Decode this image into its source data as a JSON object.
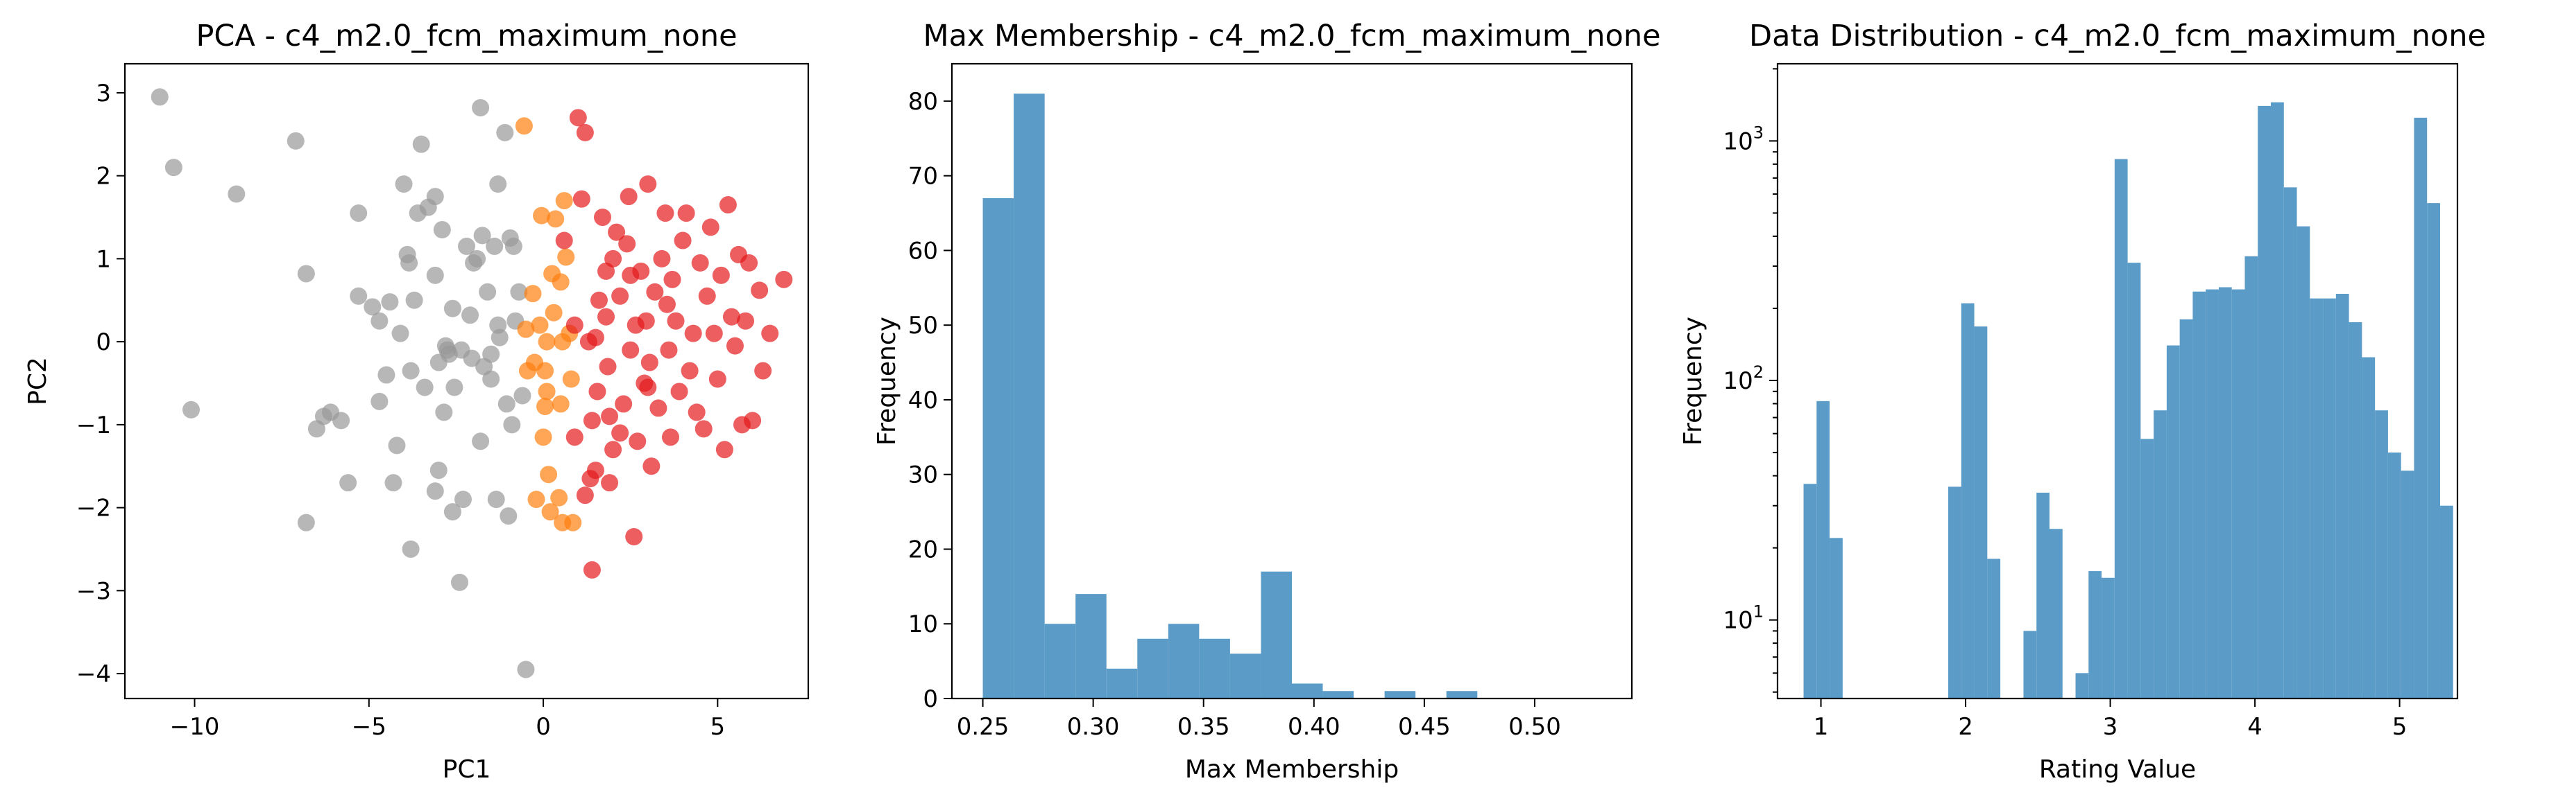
{
  "chart_data": [
    {
      "type": "scatter",
      "title": "PCA - c4_m2.0_fcm_maximum_none",
      "xlabel": "PC1",
      "ylabel": "PC2",
      "xlim": [
        -12,
        7.6
      ],
      "ylim": [
        -4.3,
        3.35
      ],
      "xticks": [
        -10,
        -5,
        0,
        5
      ],
      "yticks": [
        -4,
        -3,
        -2,
        -1,
        0,
        1,
        2,
        3
      ],
      "series": [
        {
          "color": "#999999",
          "points": [
            [
              -11,
              2.95
            ],
            [
              -10.6,
              2.1
            ],
            [
              -10.1,
              -0.82
            ],
            [
              -8.8,
              1.78
            ],
            [
              -7.1,
              2.42
            ],
            [
              -6.8,
              0.82
            ],
            [
              -6.8,
              -2.18
            ],
            [
              -6.5,
              -1.05
            ],
            [
              -6.3,
              -0.9
            ],
            [
              -6.1,
              -0.85
            ],
            [
              -5.8,
              -0.95
            ],
            [
              -5.6,
              -1.7
            ],
            [
              -5.3,
              1.55
            ],
            [
              -5.3,
              0.55
            ],
            [
              -4.9,
              0.42
            ],
            [
              -4.7,
              0.25
            ],
            [
              -4.7,
              -0.72
            ],
            [
              -4.5,
              -0.4
            ],
            [
              -4.4,
              0.48
            ],
            [
              -4.3,
              -1.7
            ],
            [
              -4.2,
              -1.25
            ],
            [
              -4.1,
              0.1
            ],
            [
              -4,
              1.9
            ],
            [
              -3.9,
              1.05
            ],
            [
              -3.85,
              0.95
            ],
            [
              -3.8,
              -0.35
            ],
            [
              -3.8,
              -2.5
            ],
            [
              -3.7,
              0.5
            ],
            [
              -3.6,
              1.55
            ],
            [
              -3.5,
              2.38
            ],
            [
              -3.4,
              -0.55
            ],
            [
              -3.3,
              1.62
            ],
            [
              -3.1,
              1.75
            ],
            [
              -3.1,
              0.8
            ],
            [
              -3.1,
              -1.8
            ],
            [
              -3,
              -0.25
            ],
            [
              -3,
              -1.55
            ],
            [
              -2.9,
              1.35
            ],
            [
              -2.85,
              -0.85
            ],
            [
              -2.8,
              -0.05
            ],
            [
              -2.75,
              -0.1
            ],
            [
              -2.7,
              -0.15
            ],
            [
              -2.6,
              0.4
            ],
            [
              -2.6,
              -2.05
            ],
            [
              -2.55,
              -0.55
            ],
            [
              -2.4,
              -2.9
            ],
            [
              -2.35,
              -0.1
            ],
            [
              -2.3,
              -1.9
            ],
            [
              -2.2,
              1.15
            ],
            [
              -2.1,
              0.32
            ],
            [
              -2.05,
              -0.2
            ],
            [
              -2,
              0.95
            ],
            [
              -1.9,
              1.0
            ],
            [
              -1.8,
              2.82
            ],
            [
              -1.8,
              -1.2
            ],
            [
              -1.75,
              1.28
            ],
            [
              -1.7,
              -0.3
            ],
            [
              -1.6,
              0.6
            ],
            [
              -1.5,
              -0.15
            ],
            [
              -1.5,
              -0.45
            ],
            [
              -1.4,
              1.15
            ],
            [
              -1.35,
              -1.9
            ],
            [
              -1.3,
              1.9
            ],
            [
              -1.3,
              0.2
            ],
            [
              -1.25,
              0.05
            ],
            [
              -1.1,
              2.52
            ],
            [
              -1.05,
              -0.75
            ],
            [
              -1,
              -2.1
            ],
            [
              -0.95,
              1.25
            ],
            [
              -0.9,
              -1.0
            ],
            [
              -0.85,
              1.15
            ],
            [
              -0.8,
              0.25
            ],
            [
              -0.7,
              0.6
            ],
            [
              -0.6,
              -0.65
            ],
            [
              -0.5,
              -3.95
            ]
          ]
        },
        {
          "color": "#ff7f0e",
          "points": [
            [
              -0.55,
              2.6
            ],
            [
              -0.5,
              0.15
            ],
            [
              -0.45,
              -0.35
            ],
            [
              -0.3,
              0.58
            ],
            [
              -0.25,
              -0.25
            ],
            [
              -0.2,
              -1.9
            ],
            [
              -0.1,
              0.2
            ],
            [
              -0.05,
              1.52
            ],
            [
              0,
              -1.15
            ],
            [
              0.05,
              -0.78
            ],
            [
              0.05,
              -0.35
            ],
            [
              0.1,
              -0.6
            ],
            [
              0.1,
              0.0
            ],
            [
              0.15,
              -1.6
            ],
            [
              0.2,
              -2.05
            ],
            [
              0.25,
              0.82
            ],
            [
              0.3,
              0.35
            ],
            [
              0.35,
              1.48
            ],
            [
              0.45,
              -1.88
            ],
            [
              0.5,
              -0.75
            ],
            [
              0.5,
              0.72
            ],
            [
              0.55,
              -2.18
            ],
            [
              0.55,
              0.0
            ],
            [
              0.6,
              1.7
            ],
            [
              0.65,
              1.02
            ],
            [
              0.75,
              0.1
            ],
            [
              0.8,
              -0.45
            ],
            [
              0.85,
              -2.18
            ]
          ]
        },
        {
          "color": "#e41a1c",
          "points": [
            [
              1.0,
              2.7
            ],
            [
              1.2,
              2.52
            ],
            [
              0.6,
              1.22
            ],
            [
              0.9,
              0.2
            ],
            [
              1.1,
              1.72
            ],
            [
              1.3,
              0.0
            ],
            [
              1.35,
              -1.65
            ],
            [
              1.4,
              -2.75
            ],
            [
              1.5,
              0.05
            ],
            [
              1.55,
              -0.6
            ],
            [
              1.6,
              0.5
            ],
            [
              1.7,
              1.5
            ],
            [
              1.8,
              0.3
            ],
            [
              1.85,
              -0.3
            ],
            [
              1.9,
              -1.7
            ],
            [
              2.0,
              1.0
            ],
            [
              2.0,
              -1.3
            ],
            [
              2.1,
              1.32
            ],
            [
              2.2,
              0.55
            ],
            [
              2.3,
              -0.75
            ],
            [
              2.4,
              1.18
            ],
            [
              2.45,
              1.75
            ],
            [
              2.5,
              -0.1
            ],
            [
              2.6,
              -2.35
            ],
            [
              2.65,
              0.2
            ],
            [
              2.7,
              -1.2
            ],
            [
              2.8,
              0.85
            ],
            [
              2.9,
              -0.5
            ],
            [
              2.95,
              0.25
            ],
            [
              3.0,
              1.9
            ],
            [
              3.05,
              -0.25
            ],
            [
              3.1,
              -1.5
            ],
            [
              3.2,
              0.6
            ],
            [
              3.3,
              -0.8
            ],
            [
              3.4,
              1.0
            ],
            [
              3.5,
              1.55
            ],
            [
              3.55,
              0.45
            ],
            [
              3.6,
              -0.1
            ],
            [
              3.65,
              -1.15
            ],
            [
              3.7,
              0.75
            ],
            [
              3.8,
              0.25
            ],
            [
              3.9,
              -0.6
            ],
            [
              4.0,
              1.22
            ],
            [
              4.1,
              1.55
            ],
            [
              4.2,
              -0.35
            ],
            [
              4.3,
              0.1
            ],
            [
              4.4,
              -0.85
            ],
            [
              4.5,
              0.95
            ],
            [
              4.6,
              -1.05
            ],
            [
              4.7,
              0.55
            ],
            [
              4.8,
              1.38
            ],
            [
              4.9,
              0.1
            ],
            [
              5.0,
              -0.45
            ],
            [
              5.1,
              0.8
            ],
            [
              5.2,
              -1.3
            ],
            [
              5.3,
              1.65
            ],
            [
              5.4,
              0.3
            ],
            [
              5.5,
              -0.05
            ],
            [
              5.6,
              1.05
            ],
            [
              5.7,
              -1.0
            ],
            [
              5.8,
              0.25
            ],
            [
              5.9,
              0.95
            ],
            [
              6.0,
              -0.95
            ],
            [
              6.2,
              0.62
            ],
            [
              6.3,
              -0.35
            ],
            [
              6.5,
              0.1
            ],
            [
              6.9,
              0.75
            ],
            [
              1.2,
              -1.85
            ],
            [
              1.5,
              -1.55
            ],
            [
              1.9,
              -0.9
            ],
            [
              2.2,
              -1.1
            ],
            [
              2.5,
              0.8
            ],
            [
              3.0,
              -0.55
            ],
            [
              0.9,
              -1.15
            ],
            [
              1.4,
              -0.95
            ],
            [
              1.8,
              0.85
            ]
          ]
        }
      ]
    },
    {
      "type": "bar",
      "title": "Max Membership - c4_m2.0_fcm_maximum_none",
      "xlabel": "Max Membership",
      "ylabel": "Frequency",
      "xlim": [
        0.236,
        0.544
      ],
      "ylim": [
        0,
        85
      ],
      "xticks": [
        0.25,
        0.3,
        0.35,
        0.4,
        0.45,
        0.5
      ],
      "xtick_labels": [
        "0.25",
        "0.30",
        "0.35",
        "0.40",
        "0.45",
        "0.50"
      ],
      "yticks": [
        0,
        10,
        20,
        30,
        40,
        50,
        60,
        70,
        80
      ],
      "color": "#5b9bc8",
      "bin_start": 0.25,
      "bin_width": 0.014,
      "values": [
        67,
        81,
        10,
        14,
        4,
        8,
        10,
        8,
        6,
        17,
        2,
        1,
        0,
        1,
        0,
        1,
        0,
        0,
        0,
        0
      ]
    },
    {
      "type": "bar",
      "title": "Data Distribution - c4_m2.0_fcm_maximum_none",
      "xlabel": "Rating Value",
      "ylabel": "Frequency",
      "yscale": "log",
      "xlim": [
        0.7,
        5.4
      ],
      "ylim": [
        4.7,
        2100
      ],
      "xticks": [
        1,
        2,
        3,
        4,
        5
      ],
      "yticks": [
        10,
        100,
        1000
      ],
      "ytick_labels": [
        [
          "10",
          "1"
        ],
        [
          "10",
          "2"
        ],
        [
          "10",
          "3"
        ]
      ],
      "color": "#5b9bc8",
      "bars": [
        [
          0.88,
          0.97,
          37
        ],
        [
          0.97,
          1.06,
          82
        ],
        [
          1.06,
          1.15,
          22
        ],
        [
          1.88,
          1.97,
          36
        ],
        [
          1.97,
          2.06,
          210
        ],
        [
          2.06,
          2.15,
          168
        ],
        [
          2.15,
          2.24,
          18
        ],
        [
          2.4,
          2.49,
          9
        ],
        [
          2.49,
          2.58,
          34
        ],
        [
          2.58,
          2.67,
          24
        ],
        [
          2.76,
          2.85,
          6
        ],
        [
          2.85,
          2.94,
          16
        ],
        [
          2.94,
          3.03,
          15
        ],
        [
          3.03,
          3.12,
          840
        ],
        [
          3.12,
          3.21,
          310
        ],
        [
          3.21,
          3.3,
          57
        ],
        [
          3.3,
          3.39,
          75
        ],
        [
          3.39,
          3.48,
          140
        ],
        [
          3.48,
          3.57,
          180
        ],
        [
          3.57,
          3.66,
          235
        ],
        [
          3.66,
          3.75,
          240
        ],
        [
          3.75,
          3.84,
          245
        ],
        [
          3.84,
          3.93,
          240
        ],
        [
          3.93,
          4.02,
          330
        ],
        [
          4.02,
          4.11,
          1400
        ],
        [
          4.11,
          4.2,
          1450
        ],
        [
          4.2,
          4.29,
          640
        ],
        [
          4.29,
          4.38,
          440
        ],
        [
          4.38,
          4.47,
          220
        ],
        [
          4.47,
          4.56,
          220
        ],
        [
          4.56,
          4.65,
          230
        ],
        [
          4.65,
          4.74,
          175
        ],
        [
          4.74,
          4.83,
          125
        ],
        [
          4.83,
          4.92,
          75
        ],
        [
          4.92,
          5.01,
          50
        ],
        [
          5.01,
          5.1,
          42
        ],
        [
          5.1,
          5.19,
          1250
        ],
        [
          5.19,
          5.28,
          550
        ],
        [
          5.28,
          5.37,
          30
        ]
      ]
    }
  ]
}
